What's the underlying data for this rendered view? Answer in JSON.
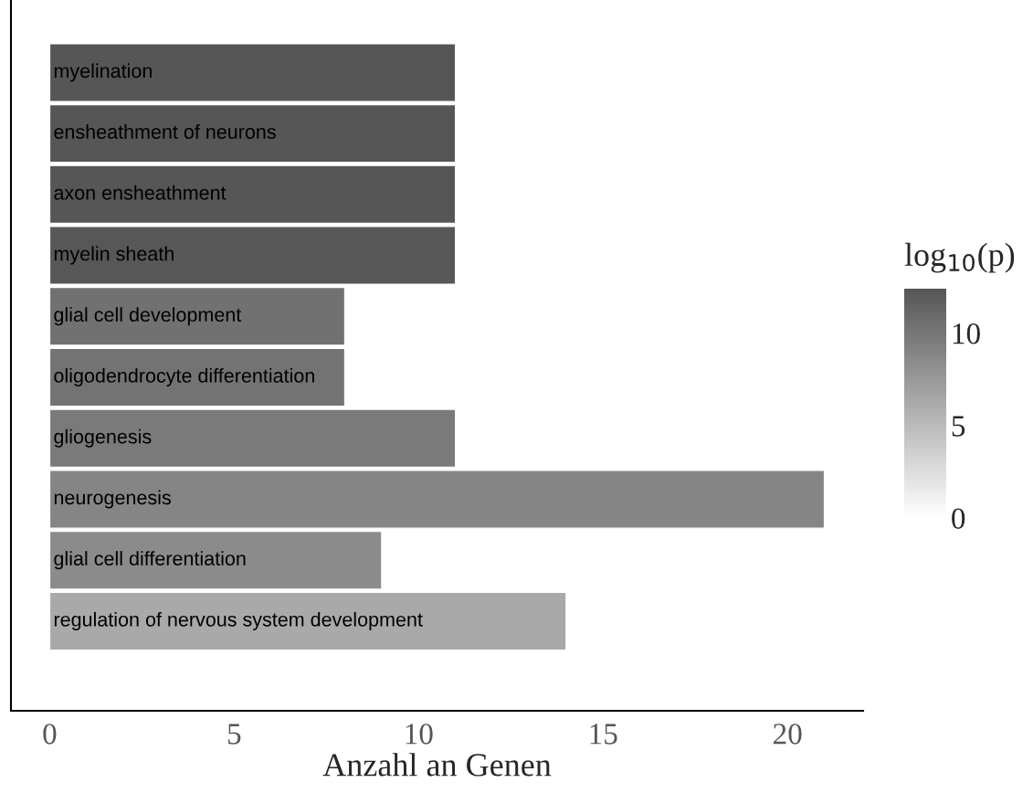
{
  "chart_data": {
    "type": "bar",
    "orientation": "horizontal",
    "xlabel": "Anzahl an Genen",
    "categories": [
      "myelination",
      "ensheathment of neurons",
      "axon ensheathment",
      "myelin sheath",
      "glial cell development",
      "oligodendrocyte differentiation",
      "gliogenesis",
      "neurogenesis",
      "glial cell differentiation",
      "regulation of nervous system development"
    ],
    "values": [
      11,
      11,
      11,
      11,
      8,
      8,
      11,
      21,
      9,
      14
    ],
    "colors": [
      "#565656",
      "#565656",
      "#565656",
      "#575757",
      "#717171",
      "#737373",
      "#7a7a7a",
      "#858585",
      "#8b8b8b",
      "#a9a9a9"
    ],
    "xlim": [
      -1.05,
      22.05
    ],
    "xticks": [
      0,
      5,
      10,
      15,
      20
    ],
    "clabel": "log$_{10}$(p)",
    "clim": [
      0,
      12.4
    ],
    "cticks": [
      0,
      5,
      10
    ],
    "grid": false,
    "legend": false
  }
}
